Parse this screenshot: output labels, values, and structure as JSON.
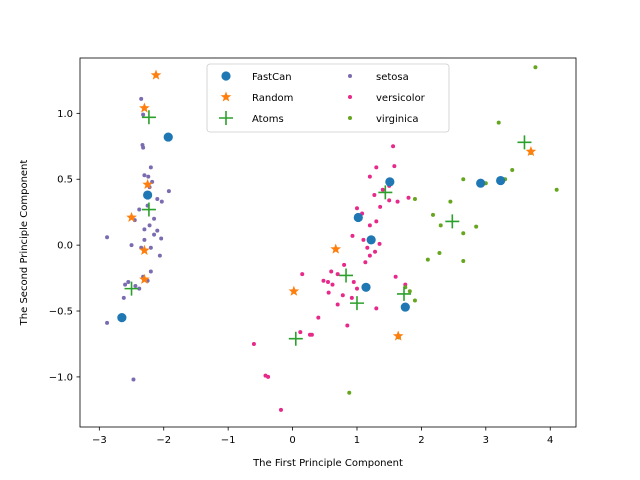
{
  "chart_data": {
    "type": "scatter",
    "title": "",
    "xlabel": "The First Principle Component",
    "ylabel": "The Second Principle Component",
    "xlim": [
      -3.3,
      4.4
    ],
    "ylim": [
      -1.38,
      1.42
    ],
    "xticks": [
      -3,
      -2,
      -1,
      0,
      1,
      2,
      3,
      4
    ],
    "yticks": [
      -1.0,
      -0.5,
      0.0,
      0.5,
      1.0
    ],
    "xtick_labels": [
      "−3",
      "−2",
      "−1",
      "0",
      "1",
      "2",
      "3",
      "4"
    ],
    "ytick_labels": [
      "−1.0",
      "−0.5",
      "0.0",
      "0.5",
      "1.0"
    ],
    "grid": false,
    "legend_position": "top-center",
    "series": [
      {
        "name": "setosa",
        "marker": "dot",
        "color": "#7b6cb1",
        "points": [
          [
            -2.35,
            1.11
          ],
          [
            -2.32,
            0.99
          ],
          [
            -2.2,
            0.59
          ],
          [
            -2.3,
            0.53
          ],
          [
            -2.24,
            0.52
          ],
          [
            -2.18,
            0.48
          ],
          [
            -2.22,
            0.44
          ],
          [
            -2.1,
            0.35
          ],
          [
            -2.03,
            0.33
          ],
          [
            -1.92,
            0.41
          ],
          [
            -2.25,
            0.3
          ],
          [
            -2.38,
            0.27
          ],
          [
            -2.15,
            0.2
          ],
          [
            -2.22,
            0.15
          ],
          [
            -2.3,
            0.12
          ],
          [
            -2.45,
            0.19
          ],
          [
            -2.1,
            0.11
          ],
          [
            -2.15,
            0.08
          ],
          [
            -2.3,
            0.04
          ],
          [
            -2.04,
            0.05
          ],
          [
            -2.88,
            0.06
          ],
          [
            -2.5,
            0.0
          ],
          [
            -2.35,
            -0.02
          ],
          [
            -2.2,
            -0.02
          ],
          [
            -2.06,
            -0.08
          ],
          [
            -2.2,
            -0.2
          ],
          [
            -2.32,
            -0.24
          ],
          [
            -2.25,
            -0.27
          ],
          [
            -2.44,
            -0.31
          ],
          [
            -2.38,
            -0.33
          ],
          [
            -2.62,
            -0.4
          ],
          [
            -2.88,
            -0.59
          ],
          [
            -2.47,
            -1.02
          ],
          [
            -2.33,
            0.76
          ],
          [
            -2.32,
            0.74
          ],
          [
            -2.6,
            -0.3
          ],
          [
            -2.55,
            -0.28
          ]
        ]
      },
      {
        "name": "versicolor",
        "marker": "dot",
        "color": "#e7298a",
        "points": [
          [
            1.56,
            0.75
          ],
          [
            1.58,
            0.6
          ],
          [
            1.3,
            0.59
          ],
          [
            1.2,
            0.52
          ],
          [
            1.4,
            0.42
          ],
          [
            1.27,
            0.38
          ],
          [
            1.5,
            0.34
          ],
          [
            1.8,
            0.36
          ],
          [
            1.63,
            0.33
          ],
          [
            1.36,
            0.29
          ],
          [
            1.08,
            0.24
          ],
          [
            1.3,
            0.18
          ],
          [
            1.2,
            0.15
          ],
          [
            0.93,
            0.07
          ],
          [
            1.1,
            0.04
          ],
          [
            1.35,
            0.01
          ],
          [
            1.16,
            -0.02
          ],
          [
            1.28,
            -0.05
          ],
          [
            1.2,
            -0.08
          ],
          [
            1.13,
            -0.13
          ],
          [
            1.6,
            -0.24
          ],
          [
            1.75,
            -0.3
          ],
          [
            0.8,
            -0.15
          ],
          [
            0.6,
            -0.2
          ],
          [
            0.7,
            -0.22
          ],
          [
            0.55,
            -0.28
          ],
          [
            0.62,
            -0.3
          ],
          [
            0.48,
            -0.27
          ],
          [
            0.95,
            -0.28
          ],
          [
            1.0,
            -0.33
          ],
          [
            0.56,
            -0.36
          ],
          [
            0.78,
            -0.38
          ],
          [
            0.7,
            -0.45
          ],
          [
            0.92,
            -0.4
          ],
          [
            1.3,
            -0.48
          ],
          [
            0.4,
            -0.55
          ],
          [
            0.85,
            -0.61
          ],
          [
            0.15,
            -0.22
          ],
          [
            0.12,
            -0.66
          ],
          [
            0.27,
            -0.68
          ],
          [
            0.3,
            -0.68
          ],
          [
            -0.6,
            -0.75
          ],
          [
            -0.42,
            -0.99
          ],
          [
            -0.38,
            -1.0
          ],
          [
            -0.18,
            -1.25
          ],
          [
            1.5,
            0.45
          ],
          [
            1.0,
            0.28
          ]
        ]
      },
      {
        "name": "virginica",
        "marker": "dot",
        "color": "#66a61e",
        "points": [
          [
            3.77,
            1.35
          ],
          [
            3.2,
            0.93
          ],
          [
            3.41,
            0.57
          ],
          [
            4.1,
            0.42
          ],
          [
            3.3,
            0.5
          ],
          [
            3.0,
            0.47
          ],
          [
            2.65,
            0.5
          ],
          [
            1.9,
            0.35
          ],
          [
            2.45,
            0.33
          ],
          [
            2.18,
            0.23
          ],
          [
            2.3,
            0.15
          ],
          [
            2.85,
            0.14
          ],
          [
            2.65,
            0.09
          ],
          [
            2.28,
            -0.06
          ],
          [
            2.1,
            -0.11
          ],
          [
            2.65,
            -0.12
          ],
          [
            1.75,
            -0.32
          ],
          [
            1.9,
            -0.42
          ],
          [
            1.65,
            -0.7
          ],
          [
            0.88,
            -1.12
          ],
          [
            1.82,
            -0.35
          ],
          [
            3.7,
            0.7
          ]
        ]
      },
      {
        "name": "FastCan",
        "marker": "circle",
        "color": "#1f77b4",
        "points": [
          [
            -1.93,
            0.82
          ],
          [
            -2.25,
            0.38
          ],
          [
            -2.65,
            -0.55
          ],
          [
            1.51,
            0.48
          ],
          [
            1.02,
            0.21
          ],
          [
            1.22,
            0.04
          ],
          [
            1.14,
            -0.32
          ],
          [
            1.75,
            -0.47
          ],
          [
            2.92,
            0.47
          ],
          [
            3.23,
            0.49
          ]
        ]
      },
      {
        "name": "Random",
        "marker": "star",
        "color": "#ff7f0e",
        "points": [
          [
            -2.12,
            1.29
          ],
          [
            -2.3,
            1.04
          ],
          [
            -2.25,
            0.46
          ],
          [
            -2.5,
            0.21
          ],
          [
            -2.3,
            -0.04
          ],
          [
            -2.3,
            -0.26
          ],
          [
            0.67,
            -0.03
          ],
          [
            0.02,
            -0.35
          ],
          [
            1.64,
            -0.69
          ],
          [
            3.7,
            0.71
          ]
        ]
      },
      {
        "name": "Atoms",
        "marker": "plus",
        "color": "#2ca02c",
        "points": [
          [
            -2.23,
            0.97
          ],
          [
            -2.23,
            0.27
          ],
          [
            -2.5,
            -0.33
          ],
          [
            0.05,
            -0.71
          ],
          [
            0.83,
            -0.23
          ],
          [
            1.0,
            -0.44
          ],
          [
            1.44,
            0.4
          ],
          [
            1.73,
            -0.37
          ],
          [
            2.48,
            0.18
          ],
          [
            3.6,
            0.78
          ]
        ]
      }
    ],
    "legend": [
      {
        "label": "FastCan",
        "marker": "circle",
        "color": "#1f77b4"
      },
      {
        "label": "setosa",
        "marker": "dot",
        "color": "#7b6cb1"
      },
      {
        "label": "Random",
        "marker": "star",
        "color": "#ff7f0e"
      },
      {
        "label": "versicolor",
        "marker": "dot",
        "color": "#e7298a"
      },
      {
        "label": "Atoms",
        "marker": "plus",
        "color": "#2ca02c"
      },
      {
        "label": "virginica",
        "marker": "dot",
        "color": "#66a61e"
      }
    ]
  }
}
